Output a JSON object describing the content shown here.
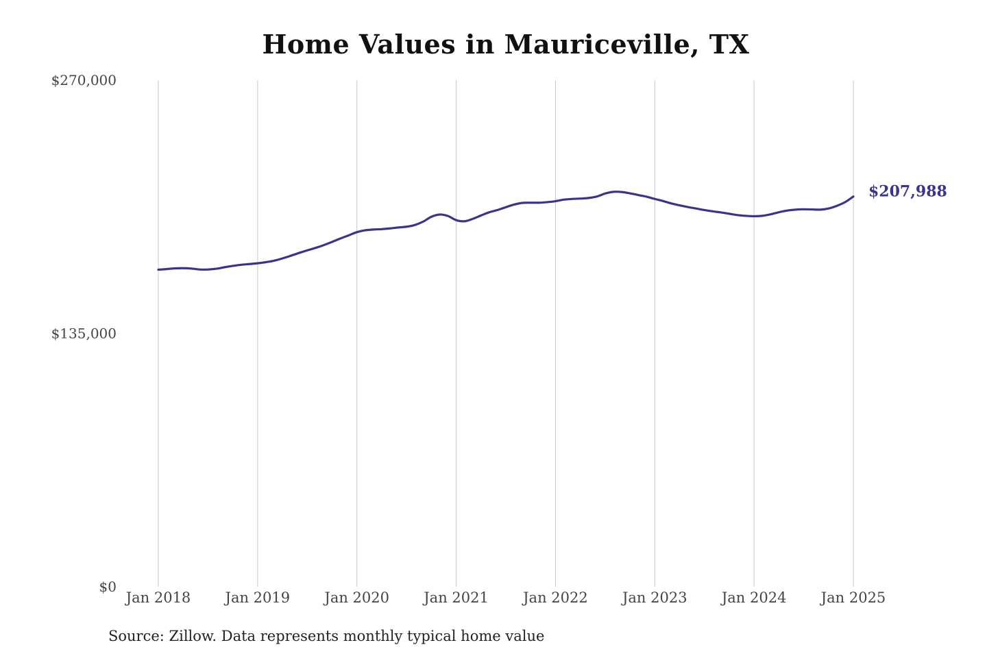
{
  "title": "Home Values in Mauriceville, TX",
  "source_note": "Source: Zillow. Data represents monthly typical home value",
  "colors": {
    "line": "#3a348c",
    "grid": "#c8c8c8",
    "text": "#444444"
  },
  "chart_data": {
    "type": "line",
    "title": "Home Values in Mauriceville, TX",
    "xlabel": "",
    "ylabel": "",
    "ylim": [
      0,
      270000
    ],
    "yticks": [
      0,
      135000,
      270000
    ],
    "ytick_labels": [
      "$0",
      "$135,000",
      "$270,000"
    ],
    "xlim": [
      2018.0,
      2025.0
    ],
    "xticks": [
      2018,
      2019,
      2020,
      2021,
      2022,
      2023,
      2024,
      2025
    ],
    "xtick_labels": [
      "Jan 2018",
      "Jan 2019",
      "Jan 2020",
      "Jan 2021",
      "Jan 2022",
      "Jan 2023",
      "Jan 2024",
      "Jan 2025"
    ],
    "grid": "vertical at x ticks",
    "end_label": "$207,988",
    "series": [
      {
        "x": [
          2018.0,
          2018.083,
          2018.167,
          2018.25,
          2018.333,
          2018.417,
          2018.5,
          2018.583,
          2018.667,
          2018.75,
          2018.833,
          2018.917,
          2019.0,
          2019.083,
          2019.167,
          2019.25,
          2019.333,
          2019.417,
          2019.5,
          2019.583,
          2019.667,
          2019.75,
          2019.833,
          2019.917,
          2020.0,
          2020.083,
          2020.167,
          2020.25,
          2020.333,
          2020.417,
          2020.5,
          2020.583,
          2020.667,
          2020.75,
          2020.833,
          2020.917,
          2021.0,
          2021.083,
          2021.167,
          2021.25,
          2021.333,
          2021.417,
          2021.5,
          2021.583,
          2021.667,
          2021.75,
          2021.833,
          2021.917,
          2022.0,
          2022.083,
          2022.167,
          2022.25,
          2022.333,
          2022.417,
          2022.5,
          2022.583,
          2022.667,
          2022.75,
          2022.833,
          2022.917,
          2023.0,
          2023.083,
          2023.167,
          2023.25,
          2023.333,
          2023.417,
          2023.5,
          2023.583,
          2023.667,
          2023.75,
          2023.833,
          2023.917,
          2024.0,
          2024.083,
          2024.167,
          2024.25,
          2024.333,
          2024.417,
          2024.5,
          2024.583,
          2024.667,
          2024.75,
          2024.833,
          2024.917,
          2025.0
        ],
        "values": [
          169000,
          169300,
          169700,
          169800,
          169600,
          169100,
          169100,
          169500,
          170300,
          171000,
          171600,
          172000,
          172400,
          173000,
          173800,
          175000,
          176400,
          177900,
          179300,
          180600,
          182100,
          183800,
          185600,
          187300,
          189000,
          190000,
          190400,
          190600,
          191000,
          191500,
          191900,
          192800,
          194600,
          197200,
          198400,
          197600,
          195400,
          194800,
          196100,
          197900,
          199600,
          200800,
          202300,
          203700,
          204600,
          204700,
          204700,
          205000,
          205500,
          206300,
          206700,
          206900,
          207200,
          208000,
          209600,
          210500,
          210400,
          209700,
          208800,
          207900,
          206700,
          205600,
          204300,
          203300,
          202400,
          201600,
          200800,
          200100,
          199500,
          198800,
          198100,
          197700,
          197500,
          197700,
          198500,
          199600,
          200500,
          201000,
          201200,
          201100,
          201000,
          201600,
          203000,
          205000,
          207988
        ]
      }
    ]
  }
}
